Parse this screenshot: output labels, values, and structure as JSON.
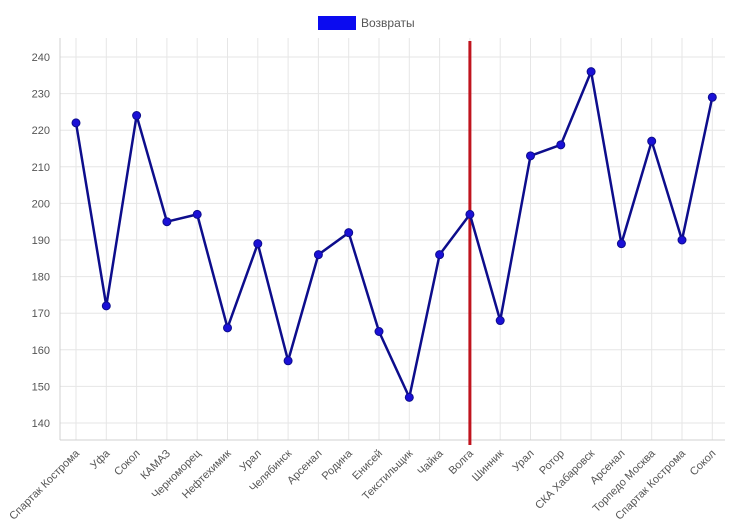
{
  "chart_data": {
    "type": "line",
    "categories": [
      "Спартак Кострома",
      "Уфа",
      "Сокол",
      "КАМАЗ",
      "Черноморец",
      "Нефтехимик",
      "Урал",
      "Челябинск",
      "Арсенал",
      "Родина",
      "Енисей",
      "Текстильщик",
      "Чайка",
      "Волга",
      "Шинник",
      "Урал",
      "Ротор",
      "СКА Хабаровск",
      "Арсенал",
      "Торпедо Москва",
      "Спартак Кострома",
      "Сокол"
    ],
    "series": [
      {
        "name": "Возвраты",
        "values": [
          222,
          172,
          224,
          195,
          197,
          166,
          189,
          157,
          186,
          192,
          165,
          147,
          186,
          197,
          168,
          213,
          216,
          236,
          189,
          217,
          190,
          229
        ]
      }
    ],
    "y_ticks": [
      140,
      150,
      160,
      170,
      180,
      190,
      200,
      210,
      220,
      230,
      240
    ],
    "ylim": [
      135,
      245
    ],
    "grid": true,
    "legend_position": "top-center",
    "vertical_marker_category": "Волга",
    "colors": {
      "line": "#0d0d8c",
      "marker": "#1a10d6",
      "legend": "#0b0bf0",
      "vline": "#c0141e",
      "grid": "#e6e6e6"
    }
  }
}
